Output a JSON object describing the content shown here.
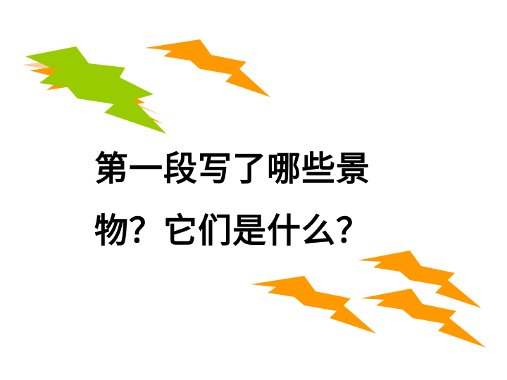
{
  "slide": {
    "question_lines": [
      "第一段写了哪些景",
      "物？它们是什么？"
    ]
  },
  "colors": {
    "background": "#ffffff",
    "text": "#000000",
    "bolt_orange": "#ff9900",
    "bolt_green": "#99cc00",
    "bolt_peach": "#ffcc99"
  },
  "decorations": {
    "icons": [
      "lightning-bolt-icon"
    ]
  }
}
